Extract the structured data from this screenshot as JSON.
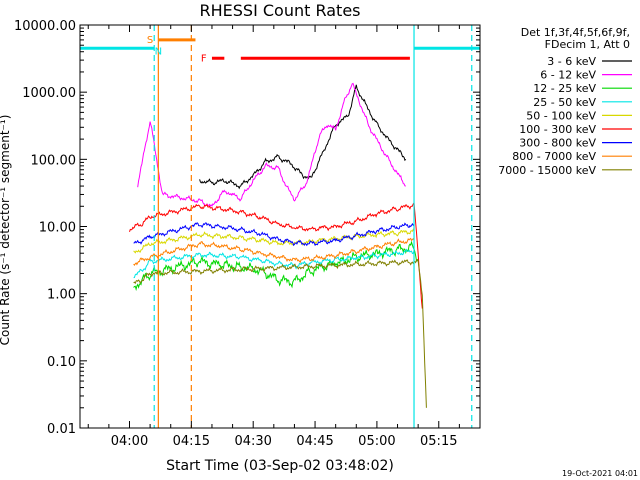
{
  "chart_data": {
    "type": "line",
    "title": "RHESSI Count Rates",
    "xlabel": "Start Time (03-Sep-02 03:48:02)",
    "ylabel": "Count Rate (s⁻¹ detector⁻¹ segment⁻¹)",
    "yscale": "log",
    "ylim": [
      0.01,
      10000
    ],
    "xlim": [
      "03:48",
      "05:25"
    ],
    "x_ticks": [
      "04:00",
      "04:15",
      "04:30",
      "04:45",
      "05:00",
      "05:15"
    ],
    "y_ticks": [
      "0.01",
      "0.10",
      "1.00",
      "10.00",
      "100.00",
      "1000.00",
      "10000.00"
    ],
    "legend_position": "right",
    "legend_header": [
      "Det 1f,3f,4f,5f,6f,9f,",
      "FDecim 1, Att 0"
    ],
    "legend_entries": [
      {
        "label": "3 - 6 keV",
        "color": "#000000"
      },
      {
        "label": "6 - 12 keV",
        "color": "#ff00ff"
      },
      {
        "label": "12 - 25 keV",
        "color": "#00d800"
      },
      {
        "label": "25 - 50 keV",
        "color": "#00e5e5"
      },
      {
        "label": "50 - 100 keV",
        "color": "#d8d800"
      },
      {
        "label": "100 - 300 keV",
        "color": "#ff0000"
      },
      {
        "label": "300 - 800 keV",
        "color": "#0000ff"
      },
      {
        "label": "800 - 7000 keV",
        "color": "#ff7f00"
      },
      {
        "label": "7000 - 15000 keV",
        "color": "#808000"
      }
    ],
    "series": [
      {
        "name": "3 - 6 keV",
        "color": "#000000",
        "points": [
          [
            "04:17",
            48
          ],
          [
            "04:20",
            45
          ],
          [
            "04:23",
            48
          ],
          [
            "04:27",
            40
          ],
          [
            "04:30",
            58
          ],
          [
            "04:33",
            92
          ],
          [
            "04:36",
            108
          ],
          [
            "04:39",
            88
          ],
          [
            "04:42",
            58
          ],
          [
            "04:44",
            52
          ],
          [
            "04:47",
            130
          ],
          [
            "04:50",
            330
          ],
          [
            "04:53",
            440
          ],
          [
            "04:55",
            1200
          ],
          [
            "04:57",
            700
          ],
          [
            "05:00",
            330
          ],
          [
            "05:03",
            190
          ],
          [
            "05:06",
            120
          ],
          [
            "05:07",
            100
          ]
        ]
      },
      {
        "name": "6 - 12 keV",
        "color": "#ff00ff",
        "points": [
          [
            "04:02",
            40
          ],
          [
            "04:05",
            380
          ],
          [
            "04:08",
            30
          ],
          [
            "04:17",
            24
          ],
          [
            "04:20",
            20
          ],
          [
            "04:23",
            34
          ],
          [
            "04:25",
            30
          ],
          [
            "04:27",
            26
          ],
          [
            "04:30",
            48
          ],
          [
            "04:33",
            80
          ],
          [
            "04:36",
            75
          ],
          [
            "04:38",
            40
          ],
          [
            "04:40",
            25
          ],
          [
            "04:43",
            45
          ],
          [
            "04:46",
            220
          ],
          [
            "04:48",
            330
          ],
          [
            "04:50",
            280
          ],
          [
            "04:52",
            700
          ],
          [
            "04:54",
            1350
          ],
          [
            "04:56",
            650
          ],
          [
            "04:58",
            320
          ],
          [
            "05:01",
            150
          ],
          [
            "05:04",
            75
          ],
          [
            "05:06",
            50
          ],
          [
            "05:07",
            40
          ]
        ]
      },
      {
        "name": "12 - 25 keV",
        "color": "#00d800",
        "points": [
          [
            "04:01",
            1.2
          ],
          [
            "04:03",
            1.6
          ],
          [
            "04:05",
            2.0
          ],
          [
            "04:17",
            3.0
          ],
          [
            "04:22",
            2.7
          ],
          [
            "04:27",
            2.5
          ],
          [
            "04:32",
            2.2
          ],
          [
            "04:36",
            1.6
          ],
          [
            "04:40",
            1.5
          ],
          [
            "04:44",
            2.2
          ],
          [
            "04:47",
            2.5
          ],
          [
            "04:50",
            2.8
          ],
          [
            "04:55",
            3.5
          ],
          [
            "05:00",
            4.0
          ],
          [
            "05:05",
            4.5
          ],
          [
            "05:09",
            5.0
          ],
          [
            "05:10",
            3.0
          ]
        ]
      },
      {
        "name": "25 - 50 keV",
        "color": "#00e5e5",
        "points": [
          [
            "04:01",
            1.8
          ],
          [
            "04:03",
            2.2
          ],
          [
            "04:05",
            3.0
          ],
          [
            "04:17",
            3.8
          ],
          [
            "04:22",
            3.7
          ],
          [
            "04:27",
            3.5
          ],
          [
            "04:32",
            3.1
          ],
          [
            "04:36",
            2.8
          ],
          [
            "04:40",
            2.6
          ],
          [
            "04:44",
            2.9
          ],
          [
            "04:50",
            3.2
          ],
          [
            "04:55",
            3.4
          ],
          [
            "05:00",
            3.7
          ],
          [
            "05:05",
            4.0
          ],
          [
            "05:09",
            4.3
          ]
        ]
      },
      {
        "name": "50 - 100 keV",
        "color": "#d8d800",
        "points": [
          [
            "04:01",
            4.0
          ],
          [
            "04:05",
            5.5
          ],
          [
            "04:17",
            7.5
          ],
          [
            "04:22",
            7.2
          ],
          [
            "04:27",
            6.8
          ],
          [
            "04:32",
            6.2
          ],
          [
            "04:36",
            5.7
          ],
          [
            "04:40",
            5.6
          ],
          [
            "04:44",
            6.0
          ],
          [
            "04:50",
            6.6
          ],
          [
            "04:55",
            7.1
          ],
          [
            "05:00",
            7.6
          ],
          [
            "05:05",
            8.0
          ],
          [
            "05:09",
            8.6
          ]
        ]
      },
      {
        "name": "100 - 300 keV",
        "color": "#ff0000",
        "points": [
          [
            "04:00",
            9.0
          ],
          [
            "04:03",
            11.0
          ],
          [
            "04:05",
            14.0
          ],
          [
            "04:17",
            20.0
          ],
          [
            "04:22",
            18.5
          ],
          [
            "04:27",
            16.5
          ],
          [
            "04:32",
            13.5
          ],
          [
            "04:36",
            11.0
          ],
          [
            "04:40",
            9.5
          ],
          [
            "04:44",
            9.2
          ],
          [
            "04:50",
            10.0
          ],
          [
            "04:55",
            12.0
          ],
          [
            "05:00",
            15.5
          ],
          [
            "05:05",
            18.5
          ],
          [
            "05:09",
            21.0
          ],
          [
            "05:10",
            4.0
          ],
          [
            "05:11",
            0.6
          ]
        ]
      },
      {
        "name": "300 - 800 keV",
        "color": "#0000ff",
        "points": [
          [
            "04:01",
            5.5
          ],
          [
            "04:05",
            7.0
          ],
          [
            "04:17",
            10.8
          ],
          [
            "04:22",
            10.0
          ],
          [
            "04:27",
            9.0
          ],
          [
            "04:32",
            7.7
          ],
          [
            "04:36",
            6.5
          ],
          [
            "04:40",
            5.7
          ],
          [
            "04:44",
            5.6
          ],
          [
            "04:50",
            6.2
          ],
          [
            "04:55",
            7.3
          ],
          [
            "05:00",
            8.6
          ],
          [
            "05:05",
            9.8
          ],
          [
            "05:09",
            10.8
          ]
        ]
      },
      {
        "name": "800 - 7000 keV",
        "color": "#ff7f00",
        "points": [
          [
            "04:01",
            2.8
          ],
          [
            "04:05",
            3.5
          ],
          [
            "04:17",
            5.5
          ],
          [
            "04:22",
            5.1
          ],
          [
            "04:27",
            4.6
          ],
          [
            "04:32",
            4.0
          ],
          [
            "04:36",
            3.5
          ],
          [
            "04:40",
            3.2
          ],
          [
            "04:44",
            3.3
          ],
          [
            "04:50",
            3.7
          ],
          [
            "04:55",
            4.3
          ],
          [
            "05:00",
            5.0
          ],
          [
            "05:05",
            5.8
          ],
          [
            "05:09",
            6.3
          ]
        ]
      },
      {
        "name": "7000 - 15000 keV",
        "color": "#808000",
        "points": [
          [
            "04:01",
            1.4
          ],
          [
            "04:03",
            1.6
          ],
          [
            "04:05",
            2.0
          ],
          [
            "05:10",
            3.0
          ],
          [
            "05:11",
            1.0
          ],
          [
            "05:12",
            0.02
          ]
        ]
      }
    ],
    "overlays": {
      "cyan_bars": [
        {
          "start": "03:48",
          "end": "04:06",
          "value": 4500
        },
        {
          "start": "05:09",
          "end": "05:25",
          "value": 4500
        }
      ],
      "red_bars": [
        {
          "start": "04:20",
          "end": "04:23",
          "value": 3200
        },
        {
          "start": "04:27",
          "end": "05:08",
          "value": 3200
        }
      ],
      "orange_bar": {
        "start": "04:07",
        "end": "04:16",
        "value": 6000
      },
      "vertical_lines": [
        {
          "time": "04:06",
          "color": "#00e5e5",
          "style": "dashed"
        },
        {
          "time": "04:07",
          "color": "#ff7f00",
          "style": "solid"
        },
        {
          "time": "04:15",
          "color": "#ff7f00",
          "style": "dashed"
        },
        {
          "time": "05:09",
          "color": "#00e5e5",
          "style": "solid"
        },
        {
          "time": "05:23",
          "color": "#00e5e5",
          "style": "dashed"
        }
      ],
      "labels": [
        {
          "text": "S",
          "time": "04:05",
          "value": 6200,
          "color": "#ff7f00"
        },
        {
          "text": "N",
          "time": "04:07",
          "value": 4200,
          "color": "#00e5e5"
        },
        {
          "text": "F",
          "time": "04:18",
          "value": 3300,
          "color": "#ff0000"
        }
      ]
    },
    "footer_timestamp": "19-Oct-2021 04:01"
  }
}
